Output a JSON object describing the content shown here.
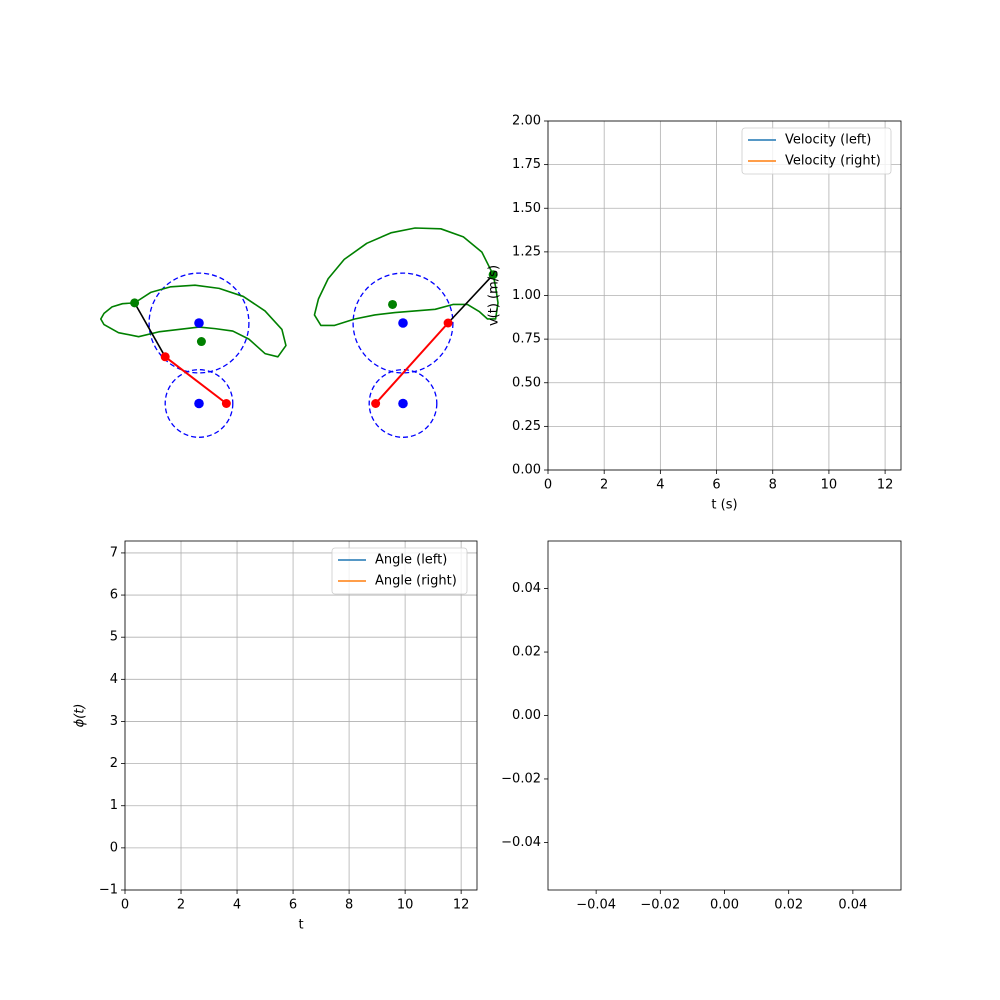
{
  "colors": {
    "series_left": "#1f77b4",
    "series_right": "#ff7f0e",
    "grid": "#b0b0b0",
    "mechanism_circle": "#0000ff",
    "mechanism_crank": "#ff0000",
    "mechanism_coupler": "#000000",
    "mechanism_curve": "#008000"
  },
  "chart_data": [
    {
      "type": "diagram",
      "description_kind": "linkage-mechanism-animation-frame",
      "mechanisms": [
        {
          "name": "left",
          "units": "same-as-velocity",
          "fixed_pivots": [
            [
              0.0,
              0.0
            ],
            [
              0.0,
              -1.0
            ]
          ],
          "pivot_circle_radii": [
            0.62,
            0.42
          ],
          "crank_end": [
            0.34,
            -1.0
          ],
          "coupler_joint": [
            -0.42,
            -0.42
          ],
          "coupler_end": [
            -0.8,
            0.25
          ],
          "coupler_midpoint": [
            0.03,
            -0.23
          ],
          "curve": [
            [
              -0.8,
              0.25
            ],
            [
              -0.6,
              0.38
            ],
            [
              -0.35,
              0.45
            ],
            [
              -0.05,
              0.47
            ],
            [
              0.25,
              0.43
            ],
            [
              0.55,
              0.33
            ],
            [
              0.82,
              0.15
            ],
            [
              1.03,
              -0.08
            ],
            [
              1.08,
              -0.28
            ],
            [
              0.98,
              -0.42
            ],
            [
              0.82,
              -0.38
            ],
            [
              0.62,
              -0.2
            ],
            [
              0.42,
              -0.1
            ],
            [
              0.2,
              -0.07
            ],
            [
              0.0,
              -0.05
            ],
            [
              -0.25,
              -0.08
            ],
            [
              -0.5,
              -0.11
            ],
            [
              -0.75,
              -0.17
            ],
            [
              -1.0,
              -0.12
            ],
            [
              -1.18,
              -0.02
            ],
            [
              -1.22,
              0.05
            ],
            [
              -1.18,
              0.12
            ],
            [
              -1.08,
              0.2
            ],
            [
              -0.95,
              0.24
            ],
            [
              -0.8,
              0.25
            ]
          ]
        },
        {
          "name": "right",
          "units": "same-as-velocity",
          "fixed_pivots": [
            [
              0.0,
              0.0
            ],
            [
              0.0,
              -1.0
            ]
          ],
          "pivot_circle_radii": [
            0.62,
            0.42
          ],
          "crank_end": [
            -0.34,
            -1.0
          ],
          "coupler_joint": [
            0.56,
            0.0
          ],
          "coupler_end": [
            1.12,
            0.6
          ],
          "coupler_midpoint": [
            -0.13,
            0.23
          ],
          "curve": [
            [
              1.12,
              0.6
            ],
            [
              0.98,
              0.88
            ],
            [
              0.75,
              1.07
            ],
            [
              0.47,
              1.17
            ],
            [
              0.15,
              1.18
            ],
            [
              -0.15,
              1.12
            ],
            [
              -0.45,
              0.99
            ],
            [
              -0.73,
              0.79
            ],
            [
              -0.93,
              0.55
            ],
            [
              -1.05,
              0.3
            ],
            [
              -1.1,
              0.1
            ],
            [
              -1.02,
              -0.03
            ],
            [
              -0.85,
              -0.03
            ],
            [
              -0.6,
              0.05
            ],
            [
              -0.35,
              0.1
            ],
            [
              -0.1,
              0.13
            ],
            [
              0.15,
              0.15
            ],
            [
              0.4,
              0.17
            ],
            [
              0.62,
              0.23
            ],
            [
              0.8,
              0.23
            ],
            [
              0.95,
              0.14
            ],
            [
              1.05,
              0.05
            ],
            [
              1.15,
              0.05
            ],
            [
              1.18,
              0.25
            ],
            [
              1.15,
              0.45
            ],
            [
              1.12,
              0.6
            ]
          ]
        }
      ]
    },
    {
      "type": "line",
      "xlabel": "t (s)",
      "ylabel": "v(t) (m/s)",
      "xlim": [
        0,
        12.566
      ],
      "ylim": [
        0,
        2.0
      ],
      "xticks": [
        "0",
        "2",
        "4",
        "6",
        "8",
        "10",
        "12"
      ],
      "yticks": [
        "0.00",
        "0.25",
        "0.50",
        "0.75",
        "1.00",
        "1.25",
        "1.50",
        "1.75",
        "2.00"
      ],
      "grid": true,
      "legend_position": "top-right",
      "series": [
        {
          "name": "Velocity (left)",
          "x": [],
          "y": []
        },
        {
          "name": "Velocity (right)",
          "x": [],
          "y": []
        }
      ]
    },
    {
      "type": "line",
      "xlabel": "t",
      "ylabel": "ϕ(t)",
      "xlim": [
        0,
        12.566
      ],
      "ylim": [
        -1,
        7.283
      ],
      "xticks": [
        "0",
        "2",
        "4",
        "6",
        "8",
        "10",
        "12"
      ],
      "yticks": [
        "−1",
        "0",
        "1",
        "2",
        "3",
        "4",
        "5",
        "6",
        "7"
      ],
      "grid": true,
      "legend_position": "top-right",
      "series": [
        {
          "name": "Angle (left)",
          "x": [],
          "y": []
        },
        {
          "name": "Angle (right)",
          "x": [],
          "y": []
        }
      ]
    },
    {
      "type": "line",
      "xlabel": "",
      "ylabel": "",
      "xlim": [
        -0.055,
        0.055
      ],
      "ylim": [
        -0.055,
        0.055
      ],
      "xticks": [
        "−0.04",
        "−0.02",
        "0.00",
        "0.02",
        "0.04"
      ],
      "yticks": [
        "−0.04",
        "−0.02",
        "0.00",
        "0.02",
        "0.04"
      ],
      "grid": false,
      "series": []
    }
  ]
}
